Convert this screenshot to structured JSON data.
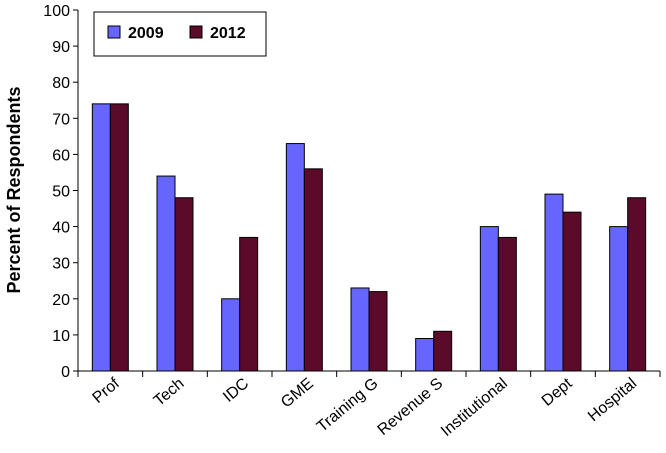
{
  "chart_data": {
    "type": "bar",
    "categories": [
      "Prof",
      "Tech",
      "IDC",
      "GME",
      "Training G",
      "Revenue S",
      "Institutional",
      "Dept",
      "Hospital"
    ],
    "series": [
      {
        "name": "2009",
        "color": "#6666ff",
        "values": [
          74,
          54,
          20,
          63,
          23,
          9,
          40,
          49,
          40
        ]
      },
      {
        "name": "2012",
        "color": "#5c0a2a",
        "values": [
          74,
          48,
          37,
          56,
          22,
          11,
          37,
          44,
          48
        ]
      }
    ],
    "ylabel": "Percent of Respondents",
    "xlabel": "",
    "ylim": [
      0,
      100
    ],
    "yticks": [
      0,
      10,
      20,
      30,
      40,
      50,
      60,
      70,
      80,
      90,
      100
    ],
    "legend_position": "top-left",
    "grid": false
  }
}
